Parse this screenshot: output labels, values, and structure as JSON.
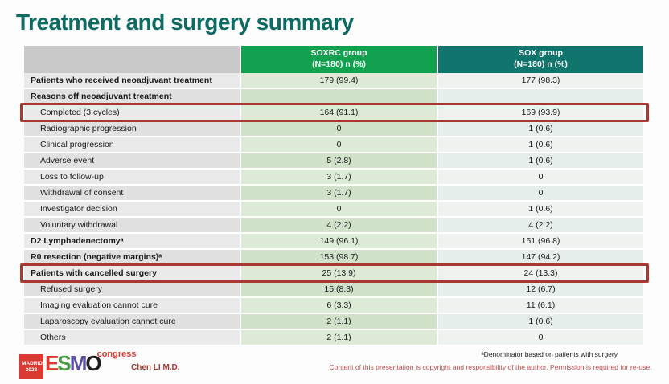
{
  "slide": {
    "title": "Treatment and surgery summary"
  },
  "table": {
    "columns": {
      "soxrc": {
        "name": "SOXRC group",
        "sub": "(N=180)  n (%)"
      },
      "sox": {
        "name": "SOX group",
        "sub": "(N=180)  n (%)"
      }
    },
    "rows": [
      {
        "label": "Patients who received neoadjuvant treatment",
        "soxrc": "179 (99.4)",
        "sox": "177 (98.3)",
        "bold": true,
        "indent": false,
        "highlight": false
      },
      {
        "label": "Reasons off neoadjuvant treatment",
        "soxrc": "",
        "sox": "",
        "bold": true,
        "indent": false,
        "highlight": false
      },
      {
        "label": "Completed (3 cycles)",
        "soxrc": "164 (91.1)",
        "sox": "169 (93.9)",
        "bold": false,
        "indent": true,
        "highlight": true
      },
      {
        "label": "Radiographic progression",
        "soxrc": "0",
        "sox": "1 (0.6)",
        "bold": false,
        "indent": true,
        "highlight": false
      },
      {
        "label": "Clinical progression",
        "soxrc": "0",
        "sox": "1 (0.6)",
        "bold": false,
        "indent": true,
        "highlight": false
      },
      {
        "label": "Adverse event",
        "soxrc": "5 (2.8)",
        "sox": "1 (0.6)",
        "bold": false,
        "indent": true,
        "highlight": false
      },
      {
        "label": "Loss to follow-up",
        "soxrc": "3 (1.7)",
        "sox": "0",
        "bold": false,
        "indent": true,
        "highlight": false
      },
      {
        "label": "Withdrawal of consent",
        "soxrc": "3 (1.7)",
        "sox": "0",
        "bold": false,
        "indent": true,
        "highlight": false
      },
      {
        "label": "Investigator decision",
        "soxrc": "0",
        "sox": "1 (0.6)",
        "bold": false,
        "indent": true,
        "highlight": false
      },
      {
        "label": "Voluntary withdrawal",
        "soxrc": "4 (2.2)",
        "sox": "4 (2.2)",
        "bold": false,
        "indent": true,
        "highlight": false
      },
      {
        "label": "D2 Lymphadenectomyᵃ",
        "soxrc": "149 (96.1)",
        "sox": "151 (96.8)",
        "bold": true,
        "indent": false,
        "highlight": false
      },
      {
        "label": "R0 resection (negative margins)ᵃ",
        "soxrc": "153 (98.7)",
        "sox": "147 (94.2)",
        "bold": true,
        "indent": false,
        "highlight": false
      },
      {
        "label": "Patients with cancelled surgery",
        "soxrc": "25 (13.9)",
        "sox": "24 (13.3)",
        "bold": true,
        "indent": false,
        "highlight": true
      },
      {
        "label": "Refused surgery",
        "soxrc": "15 (8.3)",
        "sox": "12 (6.7)",
        "bold": false,
        "indent": true,
        "highlight": false
      },
      {
        "label": "Imaging evaluation cannot cure",
        "soxrc": "6 (3.3)",
        "sox": "11 (6.1)",
        "bold": false,
        "indent": true,
        "highlight": false
      },
      {
        "label": "Laparoscopy evaluation cannot cure",
        "soxrc": "2 (1.1)",
        "sox": "1 (0.6)",
        "bold": false,
        "indent": true,
        "highlight": false
      },
      {
        "label": "Others",
        "soxrc": "2 (1.1)",
        "sox": "0",
        "bold": false,
        "indent": true,
        "highlight": false
      }
    ]
  },
  "footer": {
    "footnote": "ᵃDenominator based on patients with surgery",
    "copyright": "Content of this presentation is copyright and responsibility of the author. Permission is required for re-use.",
    "author": "Chen LI M.D.",
    "logo": {
      "city": "MADRID",
      "year": "2023",
      "letters": [
        "E",
        "S",
        "M",
        "O"
      ],
      "congress": "congress"
    }
  },
  "colors": {
    "title": "#0d6b64",
    "header_green": "#12a24f",
    "header_teal": "#0f756d",
    "highlight_red": "#a93833",
    "copyright_red": "#c14f4f",
    "logo_red": "#d93a32"
  }
}
